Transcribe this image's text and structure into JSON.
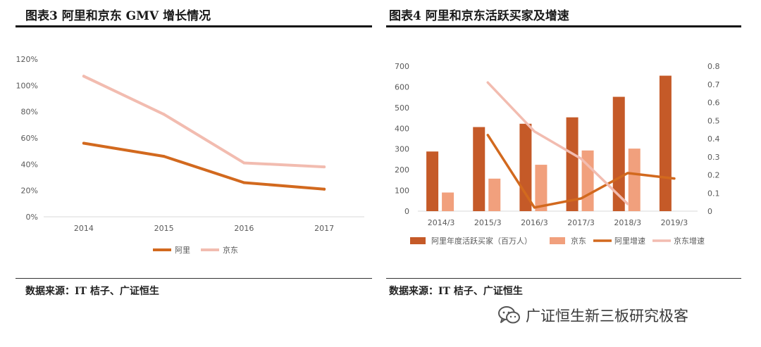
{
  "left_panel": {
    "title": "图表3 阿里和京东 GMV 增长情况",
    "source": "数据来源：IT 桔子、广证恒生"
  },
  "right_panel": {
    "title": "图表4 阿里和京东活跃买家及增速",
    "source": "数据来源：IT 桔子、广证恒生"
  },
  "watermark": {
    "text": "广证恒生新三板研究极客",
    "icon": "wechat-icon"
  },
  "colors": {
    "ali_bar": "#c55a28",
    "jd_bar": "#f1a07d",
    "ali_line": "#d2691e",
    "jd_line": "#f2bcb0"
  },
  "chart_data": [
    {
      "type": "line",
      "title": "",
      "x": [
        "2014",
        "2015",
        "2016",
        "2017"
      ],
      "y_ticks": [
        "0%",
        "20%",
        "40%",
        "60%",
        "80%",
        "100%",
        "120%"
      ],
      "ylim": [
        0,
        1.2
      ],
      "grid": false,
      "legend": "bottom",
      "series": [
        {
          "name": "阿里",
          "values": [
            0.56,
            0.46,
            0.26,
            0.21
          ]
        },
        {
          "name": "京东",
          "values": [
            1.07,
            0.78,
            0.41,
            0.38
          ]
        }
      ]
    },
    {
      "type": "bar",
      "title": "",
      "categories": [
        "2014/3",
        "2015/3",
        "2016/3",
        "2017/3",
        "2018/3",
        "2019/3"
      ],
      "y_ticks_left": [
        "0",
        "100",
        "200",
        "300",
        "400",
        "500",
        "600",
        "700"
      ],
      "y_ticks_right": [
        "0",
        "0.1",
        "0.2",
        "0.3",
        "0.4",
        "0.5",
        "0.6",
        "0.7",
        "0.8"
      ],
      "ylim_left": [
        0,
        700
      ],
      "ylim_right": [
        0,
        0.8
      ],
      "grid": false,
      "legend": "bottom",
      "series": [
        {
          "name": "阿里年度活跃买家（百万人）",
          "kind": "bar",
          "axis": "left",
          "values": [
            288,
            406,
            422,
            453,
            552,
            654
          ]
        },
        {
          "name": "京东",
          "kind": "bar",
          "axis": "left",
          "values": [
            90,
            157,
            224,
            293,
            302,
            null
          ]
        },
        {
          "name": "阿里增速",
          "kind": "line",
          "axis": "right",
          "values": [
            null,
            0.42,
            0.02,
            0.07,
            0.21,
            0.18
          ]
        },
        {
          "name": "京东增速",
          "kind": "line",
          "axis": "right",
          "values": [
            null,
            0.71,
            0.44,
            0.29,
            0.04,
            null
          ]
        }
      ]
    }
  ]
}
